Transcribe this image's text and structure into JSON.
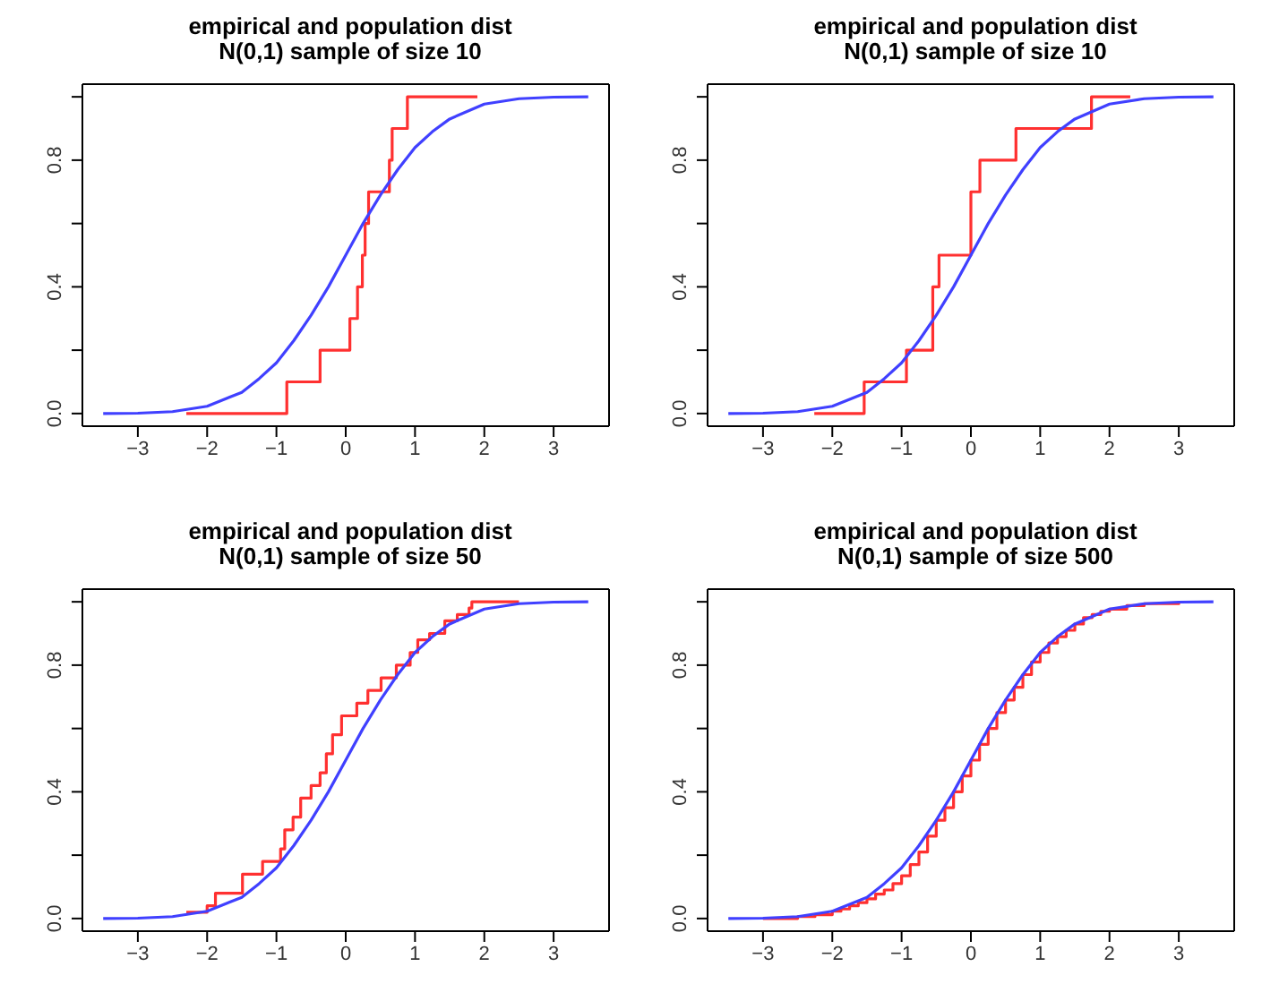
{
  "chart_data": [
    {
      "type": "line",
      "title": "empirical and population dist",
      "subtitle": "N(0,1) sample of size 10",
      "xlim": [
        -3.8,
        3.8
      ],
      "xticks": [
        -3,
        -2,
        -1,
        0,
        1,
        2,
        3
      ],
      "ylim": [
        -0.04,
        1.04
      ],
      "yticks": [
        {
          "value": 0,
          "label": "0.0"
        },
        {
          "value": 0.2,
          "label": null
        },
        {
          "value": 0.4,
          "label": "0.4"
        },
        {
          "value": 0.6,
          "label": null
        },
        {
          "value": 0.8,
          "label": "0.8"
        },
        {
          "value": 1,
          "label": null
        }
      ],
      "series": [
        {
          "type": "step",
          "color": "#ff3030",
          "x": [
            -2.3,
            -0.85,
            -0.37,
            0.06,
            0.17,
            0.24,
            0.28,
            0.33,
            0.63,
            0.67,
            0.89,
            1.9
          ],
          "values": [
            0,
            0.1,
            0.2,
            0.3,
            0.4,
            0.5,
            0.6,
            0.7,
            0.8,
            0.9,
            1,
            1
          ]
        },
        {
          "type": "line",
          "color": "#4040ff",
          "x": [
            -3.5,
            -3,
            -2.5,
            -2,
            -1.5,
            -1.25,
            -1,
            -0.75,
            -0.5,
            -0.25,
            0,
            0.25,
            0.5,
            0.75,
            1,
            1.25,
            1.5,
            2,
            2.5,
            3,
            3.5
          ],
          "values": [
            0,
            0.001,
            0.006,
            0.023,
            0.067,
            0.11,
            0.16,
            0.23,
            0.31,
            0.4,
            0.5,
            0.6,
            0.69,
            0.77,
            0.84,
            0.89,
            0.93,
            0.977,
            0.994,
            0.999,
            1
          ]
        }
      ]
    },
    {
      "type": "line",
      "title": "empirical and population dist",
      "subtitle": "N(0,1) sample of size 10",
      "xlim": [
        -3.8,
        3.8
      ],
      "xticks": [
        -3,
        -2,
        -1,
        0,
        1,
        2,
        3
      ],
      "ylim": [
        -0.04,
        1.04
      ],
      "yticks": [
        {
          "value": 0,
          "label": "0.0"
        },
        {
          "value": 0.2,
          "label": null
        },
        {
          "value": 0.4,
          "label": "0.4"
        },
        {
          "value": 0.6,
          "label": null
        },
        {
          "value": 0.8,
          "label": "0.8"
        },
        {
          "value": 1,
          "label": null
        }
      ],
      "series": [
        {
          "type": "step",
          "color": "#ff3030",
          "x": [
            -2.26,
            -1.54,
            -0.93,
            -0.55,
            -0.46,
            0,
            0.13,
            0.65,
            1.74,
            2.3
          ],
          "values": [
            0,
            0.1,
            0.2,
            0.4,
            0.5,
            0.7,
            0.8,
            0.9,
            1,
            1
          ]
        },
        {
          "type": "line",
          "color": "#4040ff",
          "x": [
            -3.5,
            -3,
            -2.5,
            -2,
            -1.5,
            -1.25,
            -1,
            -0.75,
            -0.5,
            -0.25,
            0,
            0.25,
            0.5,
            0.75,
            1,
            1.25,
            1.5,
            2,
            2.5,
            3,
            3.5
          ],
          "values": [
            0,
            0.001,
            0.006,
            0.023,
            0.067,
            0.11,
            0.16,
            0.23,
            0.31,
            0.4,
            0.5,
            0.6,
            0.69,
            0.77,
            0.84,
            0.89,
            0.93,
            0.977,
            0.994,
            0.999,
            1
          ]
        }
      ]
    },
    {
      "type": "line",
      "title": "empirical and population dist",
      "subtitle": "N(0,1) sample of size 50",
      "xlim": [
        -3.8,
        3.8
      ],
      "xticks": [
        -3,
        -2,
        -1,
        0,
        1,
        2,
        3
      ],
      "ylim": [
        -0.04,
        1.04
      ],
      "yticks": [
        {
          "value": 0,
          "label": "0.0"
        },
        {
          "value": 0.2,
          "label": null
        },
        {
          "value": 0.4,
          "label": "0.4"
        },
        {
          "value": 0.6,
          "label": null
        },
        {
          "value": 0.8,
          "label": "0.8"
        },
        {
          "value": 1,
          "label": null
        }
      ],
      "series": [
        {
          "type": "step",
          "color": "#ff3030",
          "x": [
            -2.3,
            -2,
            -1.88,
            -1.49,
            -1.2,
            -0.94,
            -0.88,
            -0.76,
            -0.65,
            -0.5,
            -0.37,
            -0.28,
            -0.19,
            -0.06,
            0.16,
            0.32,
            0.51,
            0.73,
            0.93,
            1.04,
            1.21,
            1.43,
            1.61,
            1.78,
            1.82,
            2.5
          ],
          "values": [
            0.02,
            0.04,
            0.08,
            0.14,
            0.18,
            0.22,
            0.28,
            0.32,
            0.38,
            0.42,
            0.46,
            0.52,
            0.58,
            0.64,
            0.68,
            0.72,
            0.76,
            0.8,
            0.84,
            0.88,
            0.9,
            0.94,
            0.96,
            0.98,
            1,
            1
          ]
        },
        {
          "type": "line",
          "color": "#4040ff",
          "x": [
            -3.5,
            -3,
            -2.5,
            -2,
            -1.5,
            -1.25,
            -1,
            -0.75,
            -0.5,
            -0.25,
            0,
            0.25,
            0.5,
            0.75,
            1,
            1.25,
            1.5,
            2,
            2.5,
            3,
            3.5
          ],
          "values": [
            0,
            0.001,
            0.006,
            0.023,
            0.067,
            0.11,
            0.16,
            0.23,
            0.31,
            0.4,
            0.5,
            0.6,
            0.69,
            0.77,
            0.84,
            0.89,
            0.93,
            0.977,
            0.994,
            0.999,
            1
          ]
        }
      ]
    },
    {
      "type": "line",
      "title": "empirical and population dist",
      "subtitle": "N(0,1) sample of size 500",
      "xlim": [
        -3.8,
        3.8
      ],
      "xticks": [
        -3,
        -2,
        -1,
        0,
        1,
        2,
        3
      ],
      "ylim": [
        -0.04,
        1.04
      ],
      "yticks": [
        {
          "value": 0,
          "label": "0.0"
        },
        {
          "value": 0.2,
          "label": null
        },
        {
          "value": 0.4,
          "label": "0.4"
        },
        {
          "value": 0.6,
          "label": null
        },
        {
          "value": 0.8,
          "label": "0.8"
        },
        {
          "value": 1,
          "label": null
        }
      ],
      "series": [
        {
          "type": "step",
          "color": "#ff3030",
          "x": [
            -3,
            -2.5,
            -2.25,
            -2,
            -1.875,
            -1.75,
            -1.625,
            -1.5,
            -1.375,
            -1.25,
            -1.125,
            -1,
            -0.875,
            -0.75,
            -0.625,
            -0.5,
            -0.375,
            -0.25,
            -0.125,
            0,
            0.125,
            0.25,
            0.375,
            0.5,
            0.625,
            0.75,
            0.875,
            1,
            1.125,
            1.25,
            1.375,
            1.5,
            1.625,
            1.75,
            1.875,
            2,
            2.25,
            2.5,
            3
          ],
          "values": [
            0,
            0.006,
            0.012,
            0.023,
            0.03,
            0.04,
            0.05,
            0.062,
            0.077,
            0.09,
            0.11,
            0.135,
            0.17,
            0.21,
            0.26,
            0.31,
            0.35,
            0.4,
            0.45,
            0.5,
            0.55,
            0.6,
            0.65,
            0.69,
            0.73,
            0.77,
            0.81,
            0.84,
            0.87,
            0.89,
            0.91,
            0.93,
            0.95,
            0.96,
            0.97,
            0.977,
            0.988,
            0.994,
            1
          ]
        },
        {
          "type": "line",
          "color": "#4040ff",
          "x": [
            -3.5,
            -3,
            -2.5,
            -2,
            -1.5,
            -1.25,
            -1,
            -0.75,
            -0.5,
            -0.25,
            0,
            0.25,
            0.5,
            0.75,
            1,
            1.25,
            1.5,
            2,
            2.5,
            3,
            3.5
          ],
          "values": [
            0,
            0.001,
            0.006,
            0.023,
            0.067,
            0.11,
            0.16,
            0.23,
            0.31,
            0.4,
            0.5,
            0.6,
            0.69,
            0.77,
            0.84,
            0.89,
            0.93,
            0.977,
            0.994,
            0.999,
            1
          ]
        }
      ]
    }
  ]
}
